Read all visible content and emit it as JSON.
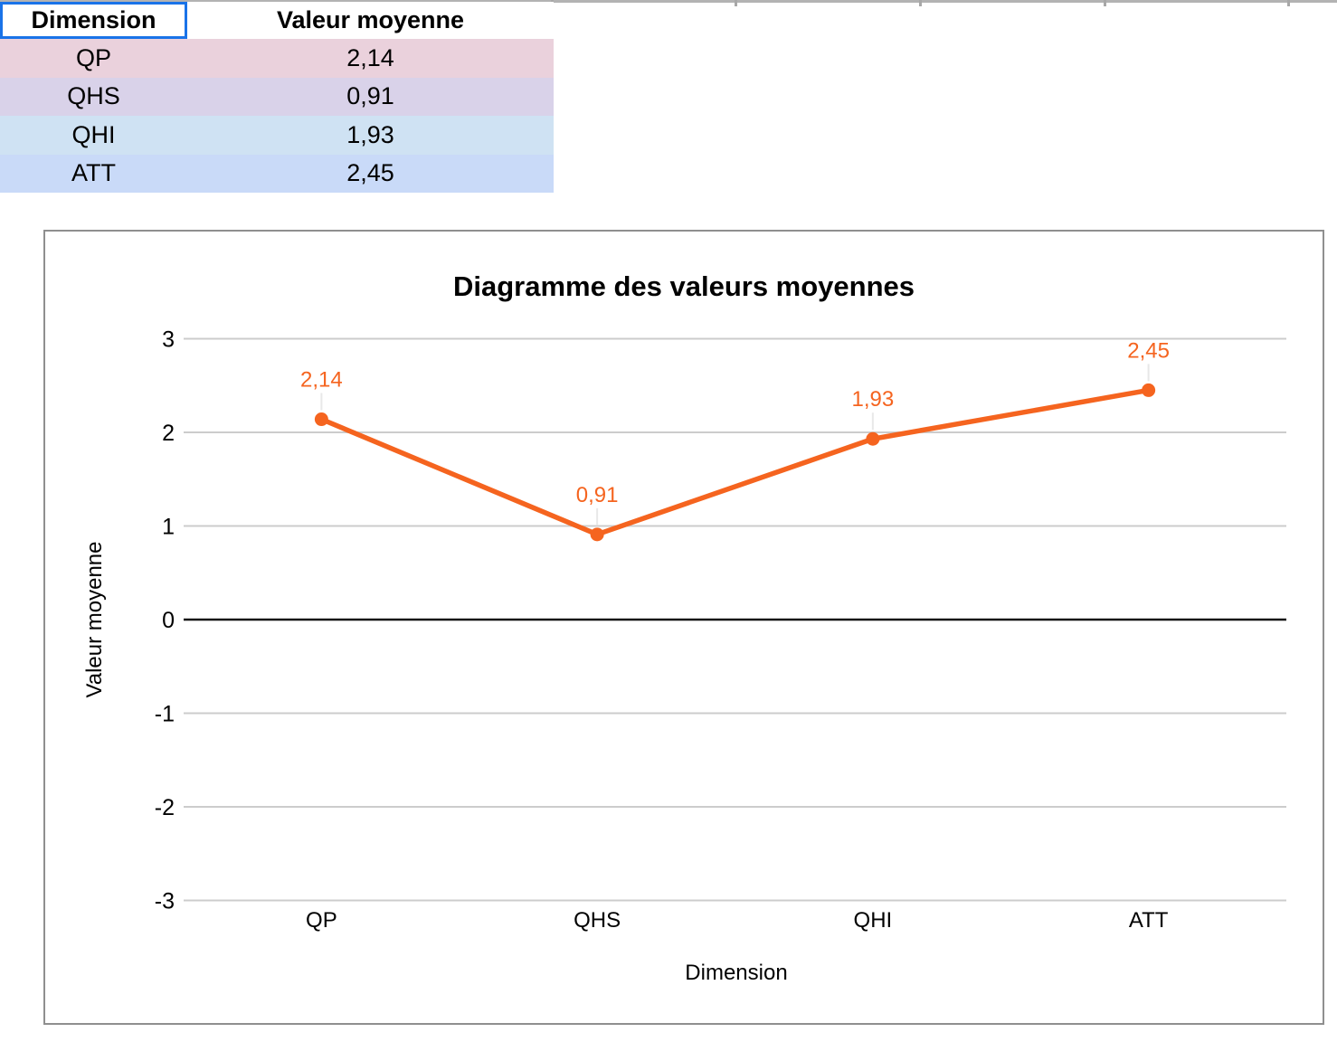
{
  "spreadsheet": {
    "table": {
      "columns": [
        "Dimension",
        "Valeur moyenne"
      ],
      "rows": [
        {
          "dimension": "QP",
          "value": "2,14",
          "color": "#ead1dc"
        },
        {
          "dimension": "QHS",
          "value": "0,91",
          "color": "#d9d2e9"
        },
        {
          "dimension": "QHI",
          "value": "1,93",
          "color": "#cfe2f3"
        },
        {
          "dimension": "ATT",
          "value": "2,45",
          "color": "#c9daf8"
        }
      ],
      "selected_cell": "Dimension",
      "selection_border_color": "#1a73e8"
    }
  },
  "chart_data": {
    "type": "line",
    "title": "Diagramme des valeurs moyennes",
    "xlabel": "Dimension",
    "ylabel": "Valeur moyenne",
    "categories": [
      "QP",
      "QHS",
      "QHI",
      "ATT"
    ],
    "values": [
      2.14,
      0.91,
      1.93,
      2.45
    ],
    "value_labels": [
      "2,14",
      "0,91",
      "1,93",
      "2,45"
    ],
    "ylim": [
      -3,
      3
    ],
    "yticks": [
      3,
      2,
      1,
      0,
      -1,
      -2,
      -3
    ],
    "grid": true,
    "legend_position": "none",
    "series_color": "#f5641f",
    "gridline_color": "#cccccc",
    "zero_line_color": "#151515",
    "leader_line_color": "#e8e8e8"
  }
}
